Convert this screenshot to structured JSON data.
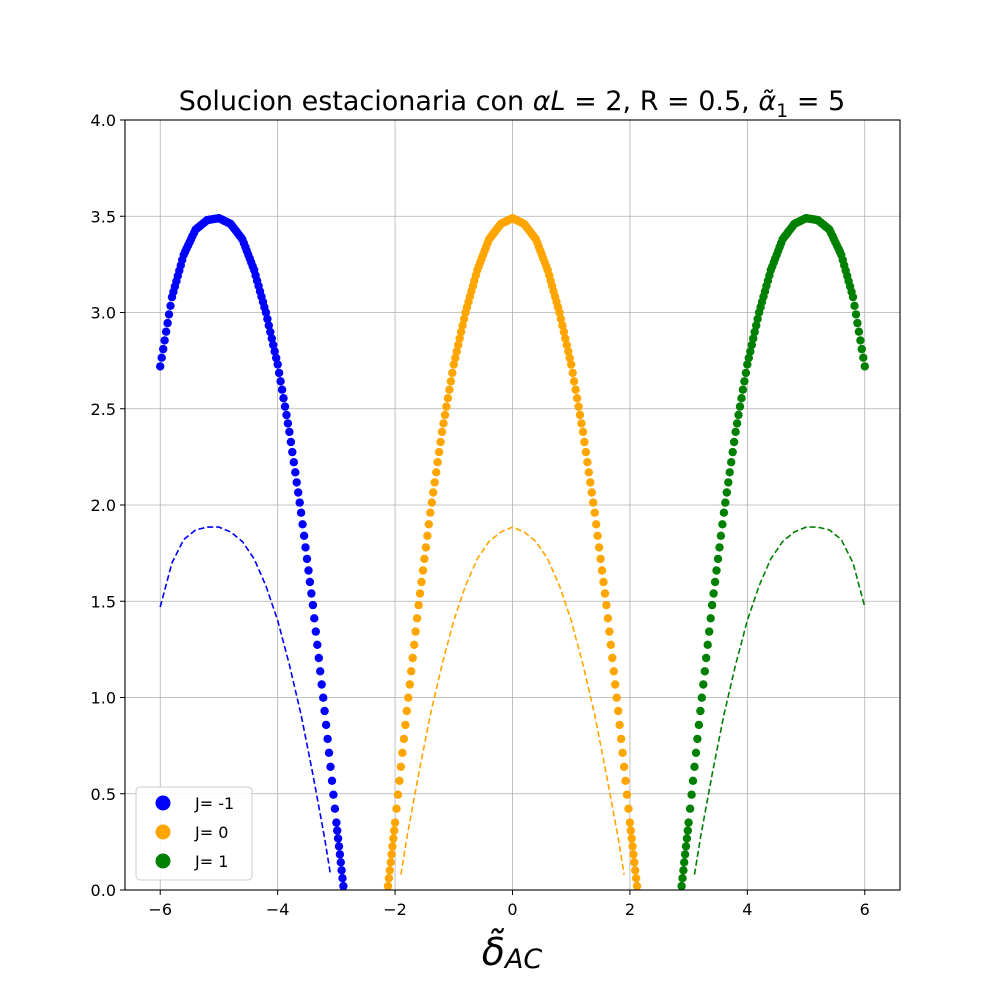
{
  "chart_data": {
    "type": "scatter",
    "title": "Solucion estacionaria con αL = 2, R = 0.5, α̃₁ = 5",
    "title_parts": {
      "prefix": "Solucion estacionaria con ",
      "param1_symbol": "αL",
      "param1_value": " = 2, R = 0.5, ",
      "param2_symbol": "α̃",
      "param2_sub": "1",
      "param2_value": " = 5"
    },
    "xlabel": "δ̃AC",
    "xlabel_parts": {
      "symbol": "δ̃",
      "sub": "AC"
    },
    "ylabel": "",
    "xlim": [
      -6.6,
      6.6
    ],
    "ylim": [
      0.0,
      4.0
    ],
    "x_ticks": [
      -6,
      -4,
      -2,
      0,
      2,
      4,
      6
    ],
    "x_tick_labels": [
      "−6",
      "−4",
      "−2",
      "0",
      "2",
      "4",
      "6"
    ],
    "y_ticks": [
      0.0,
      0.5,
      1.0,
      1.5,
      2.0,
      2.5,
      3.0,
      3.5,
      4.0
    ],
    "y_tick_labels": [
      "0.0",
      "0.5",
      "1.0",
      "1.5",
      "2.0",
      "2.5",
      "3.0",
      "3.5",
      "4.0"
    ],
    "grid": true,
    "legend_position": "lower-left",
    "series": [
      {
        "name": "J= -1",
        "color": "#0000ff",
        "style": "markers",
        "center": -5,
        "points": [
          [
            -6.0,
            2.72
          ],
          [
            -5.8,
            3.08
          ],
          [
            -5.6,
            3.3
          ],
          [
            -5.4,
            3.43
          ],
          [
            -5.2,
            3.48
          ],
          [
            -5.0,
            3.49
          ],
          [
            -4.8,
            3.46
          ],
          [
            -4.6,
            3.38
          ],
          [
            -4.4,
            3.22
          ],
          [
            -4.2,
            3.0
          ],
          [
            -4.0,
            2.73
          ],
          [
            -3.8,
            2.38
          ],
          [
            -3.6,
            1.96
          ],
          [
            -3.4,
            1.48
          ],
          [
            -3.2,
            0.93
          ],
          [
            -3.0,
            0.35
          ],
          [
            -2.88,
            0.02
          ]
        ]
      },
      {
        "name": "J= 0",
        "color": "#ffa500",
        "style": "markers",
        "center": 0,
        "points": [
          [
            -2.12,
            0.02
          ],
          [
            -2.0,
            0.35
          ],
          [
            -1.8,
            0.93
          ],
          [
            -1.6,
            1.48
          ],
          [
            -1.4,
            1.96
          ],
          [
            -1.2,
            2.38
          ],
          [
            -1.0,
            2.73
          ],
          [
            -0.8,
            3.0
          ],
          [
            -0.6,
            3.22
          ],
          [
            -0.4,
            3.38
          ],
          [
            -0.2,
            3.46
          ],
          [
            0.0,
            3.49
          ],
          [
            0.2,
            3.46
          ],
          [
            0.4,
            3.38
          ],
          [
            0.6,
            3.22
          ],
          [
            0.8,
            3.0
          ],
          [
            1.0,
            2.73
          ],
          [
            1.2,
            2.38
          ],
          [
            1.4,
            1.96
          ],
          [
            1.6,
            1.48
          ],
          [
            1.8,
            0.93
          ],
          [
            2.0,
            0.35
          ],
          [
            2.12,
            0.02
          ]
        ]
      },
      {
        "name": "J= 1",
        "color": "#008000",
        "style": "markers",
        "center": 5,
        "points": [
          [
            2.88,
            0.02
          ],
          [
            3.0,
            0.35
          ],
          [
            3.2,
            0.93
          ],
          [
            3.4,
            1.48
          ],
          [
            3.6,
            1.96
          ],
          [
            3.8,
            2.38
          ],
          [
            4.0,
            2.73
          ],
          [
            4.2,
            3.0
          ],
          [
            4.4,
            3.22
          ],
          [
            4.6,
            3.38
          ],
          [
            4.8,
            3.46
          ],
          [
            5.0,
            3.49
          ],
          [
            5.2,
            3.48
          ],
          [
            5.4,
            3.43
          ],
          [
            5.6,
            3.3
          ],
          [
            5.8,
            3.08
          ],
          [
            6.0,
            2.72
          ]
        ]
      },
      {
        "color": "#0000ff",
        "style": "dashed",
        "center": -5,
        "points": [
          [
            -6.0,
            1.47
          ],
          [
            -5.8,
            1.7
          ],
          [
            -5.6,
            1.82
          ],
          [
            -5.4,
            1.87
          ],
          [
            -5.2,
            1.885
          ],
          [
            -5.0,
            1.885
          ],
          [
            -4.8,
            1.86
          ],
          [
            -4.6,
            1.81
          ],
          [
            -4.4,
            1.72
          ],
          [
            -4.2,
            1.58
          ],
          [
            -4.0,
            1.4
          ],
          [
            -3.8,
            1.17
          ],
          [
            -3.6,
            0.91
          ],
          [
            -3.4,
            0.6
          ],
          [
            -3.2,
            0.27
          ],
          [
            -3.1,
            0.08
          ]
        ]
      },
      {
        "color": "#ffa500",
        "style": "dashed",
        "center": 0,
        "points": [
          [
            -1.9,
            0.08
          ],
          [
            -1.8,
            0.27
          ],
          [
            -1.6,
            0.6
          ],
          [
            -1.4,
            0.91
          ],
          [
            -1.2,
            1.17
          ],
          [
            -1.0,
            1.4
          ],
          [
            -0.8,
            1.58
          ],
          [
            -0.6,
            1.72
          ],
          [
            -0.4,
            1.81
          ],
          [
            -0.2,
            1.86
          ],
          [
            0.0,
            1.885
          ],
          [
            0.2,
            1.86
          ],
          [
            0.4,
            1.81
          ],
          [
            0.6,
            1.72
          ],
          [
            0.8,
            1.58
          ],
          [
            1.0,
            1.4
          ],
          [
            1.2,
            1.17
          ],
          [
            1.4,
            0.91
          ],
          [
            1.6,
            0.6
          ],
          [
            1.8,
            0.27
          ],
          [
            1.9,
            0.08
          ]
        ]
      },
      {
        "color": "#008000",
        "style": "dashed",
        "center": 5,
        "points": [
          [
            3.1,
            0.08
          ],
          [
            3.2,
            0.27
          ],
          [
            3.4,
            0.6
          ],
          [
            3.6,
            0.91
          ],
          [
            3.8,
            1.17
          ],
          [
            4.0,
            1.4
          ],
          [
            4.2,
            1.58
          ],
          [
            4.4,
            1.72
          ],
          [
            4.6,
            1.81
          ],
          [
            4.8,
            1.86
          ],
          [
            5.0,
            1.885
          ],
          [
            5.2,
            1.885
          ],
          [
            5.4,
            1.87
          ],
          [
            5.6,
            1.82
          ],
          [
            5.8,
            1.7
          ],
          [
            6.0,
            1.47
          ]
        ]
      }
    ]
  }
}
